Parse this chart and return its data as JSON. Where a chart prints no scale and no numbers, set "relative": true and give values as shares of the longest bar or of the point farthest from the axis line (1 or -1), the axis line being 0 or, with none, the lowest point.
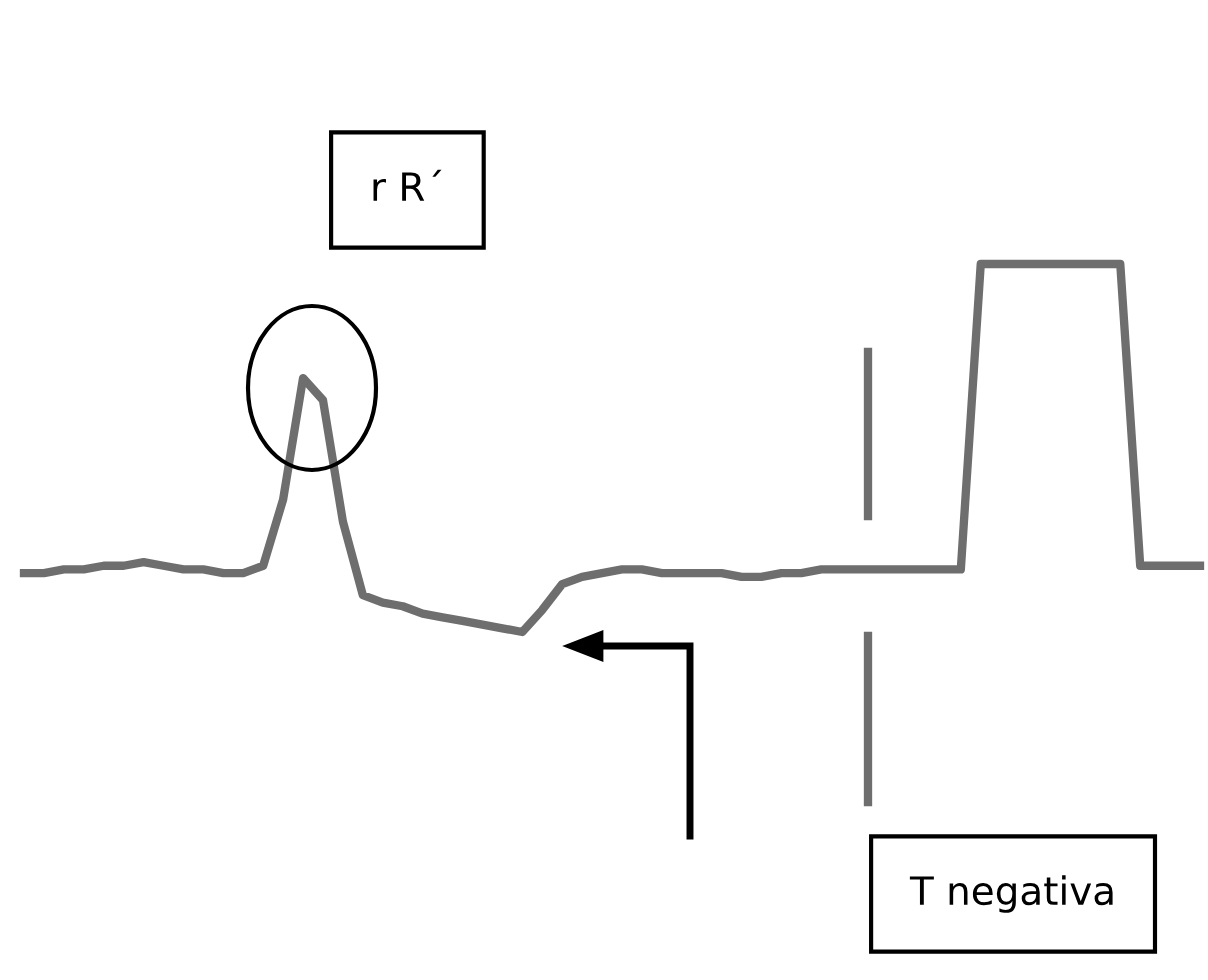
{
  "chart_data": {
    "type": "line",
    "relative": true,
    "tick_labels": false,
    "categories": [
      null,
      null,
      null,
      null,
      null,
      null,
      null,
      null,
      null,
      null,
      null,
      null,
      null,
      null,
      null,
      null,
      null,
      null,
      null,
      null,
      null,
      null,
      null,
      null,
      null,
      null,
      null,
      null,
      null,
      null,
      null,
      null,
      null,
      null,
      null,
      null,
      null,
      null,
      null,
      null,
      null,
      null,
      null,
      null,
      null,
      null,
      null,
      null,
      null,
      null,
      null,
      null,
      null,
      null,
      null,
      null,
      null,
      null,
      null,
      null
    ],
    "series": [
      {
        "color": "#6e6e6e",
        "values": [
          0.16,
          0.16,
          0.17,
          0.17,
          0.18,
          0.18,
          0.19,
          0.18,
          0.17,
          0.17,
          0.16,
          0.16,
          0.18,
          0.36,
          0.69,
          0.63,
          0.3,
          0.1,
          0.08,
          0.07,
          0.05,
          0.04,
          0.03,
          0.02,
          0.01,
          0,
          0.06,
          0.13,
          0.15,
          0.16,
          0.17,
          0.17,
          0.16,
          0.16,
          0.16,
          0.16,
          0.15,
          0.15,
          0.16,
          0.16,
          0.17,
          0.17,
          0.17,
          0.17,
          0.17,
          0.17,
          0.17,
          0.17,
          1,
          1,
          1,
          1,
          1,
          1,
          1,
          1,
          0.18,
          0.18,
          0.18,
          0.18
        ]
      }
    ],
    "annotations": [
      "r R´",
      "T negativa"
    ]
  }
}
